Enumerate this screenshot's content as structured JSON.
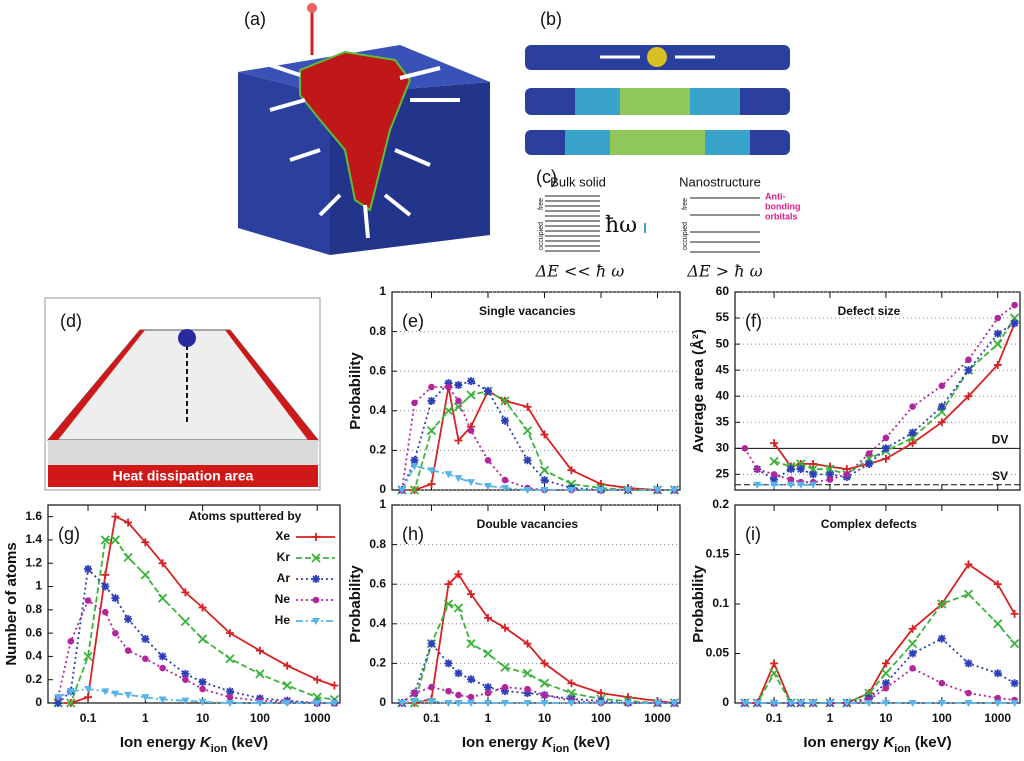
{
  "illustrations": {
    "labels": [
      "(a)",
      "(b)",
      "(c)",
      "(d)"
    ],
    "bulk_solid": "Bulk solid",
    "nanostructure": "Nanostructure",
    "antibonding": [
      "Anti-",
      "bonding",
      "orbitals"
    ],
    "free": "free",
    "occupied": "occupied",
    "hbar_omega": "ħω",
    "bulk_relation": "ΔE << ħ ω",
    "nano_relation": "ΔE > ħ ω",
    "heat_area": "Heat dissipation area"
  },
  "chart_data": [
    {
      "type": "line",
      "label": "(e)",
      "title": "Single vacancies",
      "ylabel": "Probability",
      "xscale": "log",
      "grid": true,
      "xticklabels": false,
      "x": [
        0.03,
        0.05,
        0.1,
        0.2,
        0.3,
        0.5,
        1,
        2,
        5,
        10,
        30,
        100,
        300,
        1000,
        2000
      ],
      "xlim": [
        0.02,
        2500
      ],
      "xticks": [
        0.1,
        1,
        10,
        100,
        1000
      ],
      "ylim": [
        0,
        1
      ],
      "yticks": [
        0,
        0.2,
        0.4,
        0.6,
        0.8,
        1
      ],
      "series": [
        {
          "color": "#d62222",
          "linestyle": "solid",
          "marker": "plus",
          "values": [
            0,
            0,
            0.03,
            0.52,
            0.25,
            0.32,
            0.5,
            0.45,
            0.42,
            0.28,
            0.1,
            0.03,
            0.01,
            0,
            0
          ]
        },
        {
          "color": "#3cb33c",
          "linestyle": "dashed",
          "marker": "cross",
          "values": [
            0,
            0,
            0.3,
            0.4,
            0.42,
            0.48,
            0.5,
            0.45,
            0.3,
            0.1,
            0.03,
            0.01,
            0,
            0,
            0
          ]
        },
        {
          "color": "#2c3eb8",
          "linestyle": "dotted",
          "marker": "star",
          "values": [
            0,
            0.15,
            0.45,
            0.54,
            0.53,
            0.55,
            0.5,
            0.35,
            0.15,
            0.05,
            0.01,
            0,
            0,
            0,
            0
          ]
        },
        {
          "color": "#b2269c",
          "linestyle": "dotted",
          "marker": "circle",
          "values": [
            0,
            0.44,
            0.52,
            0.52,
            0.45,
            0.3,
            0.15,
            0.05,
            0.01,
            0,
            0,
            0,
            0,
            0,
            0
          ]
        },
        {
          "color": "#56b4e9",
          "linestyle": "dashdot",
          "marker": "triangle",
          "values": [
            0,
            0.12,
            0.1,
            0.08,
            0.06,
            0.04,
            0.02,
            0.01,
            0,
            0,
            0,
            0,
            0,
            0,
            0
          ]
        }
      ]
    },
    {
      "type": "line",
      "label": "(f)",
      "title": "Defect size",
      "ylabel": "Average  area (Å²)",
      "xscale": "log",
      "grid": true,
      "xticklabels": false,
      "x": [
        0.03,
        0.05,
        0.1,
        0.2,
        0.3,
        0.5,
        1,
        2,
        5,
        10,
        30,
        100,
        300,
        1000,
        2000
      ],
      "xlim": [
        0.02,
        2500
      ],
      "xticks": [
        0.1,
        1,
        10,
        100,
        1000
      ],
      "ylim": [
        22,
        60
      ],
      "yticks": [
        25,
        30,
        35,
        40,
        45,
        50,
        55,
        60
      ],
      "reference_lines": [
        {
          "y": 30,
          "label": "DV",
          "linestyle": "solid"
        },
        {
          "y": 23,
          "label": "SV",
          "linestyle": "dashed"
        }
      ],
      "series": [
        {
          "color": "#d62222",
          "linestyle": "solid",
          "marker": "plus",
          "values": [
            null,
            null,
            31,
            26.5,
            27,
            27,
            26.5,
            26,
            27,
            28,
            31,
            35,
            40,
            46,
            54
          ]
        },
        {
          "color": "#3cb33c",
          "linestyle": "dashed",
          "marker": "cross",
          "values": [
            null,
            null,
            27.5,
            26.5,
            27,
            26,
            26,
            25,
            28,
            29.5,
            32,
            37,
            45,
            50,
            55
          ]
        },
        {
          "color": "#2c3eb8",
          "linestyle": "dotted",
          "marker": "star",
          "values": [
            null,
            26,
            24,
            26,
            26,
            25,
            25,
            24.5,
            27,
            30,
            33,
            38,
            45,
            52,
            54
          ]
        },
        {
          "color": "#b2269c",
          "linestyle": "dotted",
          "marker": "circle",
          "values": [
            30,
            26,
            25,
            24,
            23.5,
            23.5,
            24,
            25,
            29,
            32,
            38,
            42,
            47,
            55,
            57.5
          ]
        },
        {
          "color": "#56b4e9",
          "linestyle": "dashdot",
          "marker": "triangle",
          "values": [
            null,
            23,
            23,
            23,
            23,
            23,
            null,
            null,
            null,
            null,
            null,
            null,
            null,
            null,
            null
          ]
        }
      ]
    },
    {
      "type": "line",
      "label": "(g)",
      "ylabel": "Number of atoms",
      "xlabel": [
        "Ion energy ",
        "K",
        "ion",
        " (keV)"
      ],
      "xscale": "log",
      "grid": false,
      "legend": "upper right",
      "legend_title": "Atoms sputtered by",
      "x": [
        0.03,
        0.05,
        0.1,
        0.2,
        0.3,
        0.5,
        1,
        2,
        5,
        10,
        30,
        100,
        300,
        1000,
        2000
      ],
      "xlim": [
        0.02,
        2500
      ],
      "xticks": [
        0.1,
        1,
        10,
        100,
        1000
      ],
      "ylim": [
        0,
        1.7
      ],
      "yticks": [
        0,
        0.2,
        0.4,
        0.6,
        0.8,
        1,
        1.2,
        1.4,
        1.6
      ],
      "series": [
        {
          "name": "Xe",
          "color": "#d62222",
          "linestyle": "solid",
          "marker": "plus",
          "values": [
            0,
            0,
            0.05,
            1.1,
            1.6,
            1.55,
            1.38,
            1.2,
            0.95,
            0.82,
            0.6,
            0.45,
            0.32,
            0.2,
            0.15
          ]
        },
        {
          "name": "Kr",
          "color": "#3cb33c",
          "linestyle": "dashed",
          "marker": "cross",
          "values": [
            0,
            0,
            0.4,
            1.4,
            1.4,
            1.25,
            1.1,
            0.9,
            0.7,
            0.55,
            0.38,
            0.25,
            0.15,
            0.05,
            0.03
          ]
        },
        {
          "name": "Ar",
          "color": "#2c3eb8",
          "linestyle": "dotted",
          "marker": "star",
          "values": [
            0,
            0.1,
            1.15,
            1.0,
            0.9,
            0.72,
            0.55,
            0.4,
            0.25,
            0.18,
            0.1,
            0.04,
            0.02,
            0,
            0
          ]
        },
        {
          "name": "Ne",
          "color": "#b2269c",
          "linestyle": "dotted",
          "marker": "circle",
          "values": [
            0.05,
            0.53,
            0.88,
            0.78,
            0.6,
            0.45,
            0.38,
            0.3,
            0.2,
            0.12,
            0.05,
            0.02,
            0.01,
            0,
            0
          ]
        },
        {
          "name": "He",
          "color": "#56b4e9",
          "linestyle": "dashdot",
          "marker": "triangle",
          "values": [
            0.05,
            0.1,
            0.12,
            0.1,
            0.08,
            0.07,
            0.05,
            0.03,
            0.02,
            0.01,
            0,
            0,
            0,
            0,
            0
          ]
        }
      ]
    },
    {
      "type": "line",
      "label": "(h)",
      "title": "Double vacancies",
      "ylabel": "Probability",
      "xlabel": [
        "Ion energy ",
        "K",
        "ion",
        " (keV)"
      ],
      "xscale": "log",
      "grid": true,
      "x": [
        0.03,
        0.05,
        0.1,
        0.2,
        0.3,
        0.5,
        1,
        2,
        5,
        10,
        30,
        100,
        300,
        1000,
        2000
      ],
      "xlim": [
        0.02,
        2500
      ],
      "xticks": [
        0.1,
        1,
        10,
        100,
        1000
      ],
      "ylim": [
        0,
        1
      ],
      "yticks": [
        0,
        0.2,
        0.4,
        0.6,
        0.8,
        1
      ],
      "series": [
        {
          "color": "#d62222",
          "linestyle": "solid",
          "marker": "plus",
          "values": [
            0,
            0,
            0.02,
            0.6,
            0.65,
            0.55,
            0.43,
            0.38,
            0.3,
            0.2,
            0.1,
            0.05,
            0.03,
            0.01,
            0
          ]
        },
        {
          "color": "#3cb33c",
          "linestyle": "dashed",
          "marker": "cross",
          "values": [
            0,
            0,
            0.3,
            0.5,
            0.48,
            0.3,
            0.25,
            0.18,
            0.15,
            0.1,
            0.05,
            0.02,
            0.01,
            0,
            0
          ]
        },
        {
          "color": "#2c3eb8",
          "linestyle": "dotted",
          "marker": "star",
          "values": [
            0,
            0.05,
            0.3,
            0.2,
            0.15,
            0.12,
            0.08,
            0.06,
            0.05,
            0.04,
            0.02,
            0.01,
            0,
            0,
            0
          ]
        },
        {
          "color": "#b2269c",
          "linestyle": "dotted",
          "marker": "circle",
          "values": [
            0,
            0.05,
            0.08,
            0.06,
            0.04,
            0.03,
            0.05,
            0.08,
            0.07,
            0.04,
            0.01,
            0,
            0,
            0,
            0
          ]
        },
        {
          "color": "#56b4e9",
          "linestyle": "dashdot",
          "marker": "triangle",
          "values": [
            0,
            0.01,
            0.01,
            0,
            0,
            0,
            0,
            0,
            0,
            0,
            0,
            0,
            0,
            0,
            0
          ]
        }
      ]
    },
    {
      "type": "line",
      "label": "(i)",
      "title": "Complex defects",
      "ylabel": "Probability",
      "xlabel": [
        "Ion energy ",
        "K",
        "ion",
        " (keV)"
      ],
      "xscale": "log",
      "grid": false,
      "x": [
        0.03,
        0.05,
        0.1,
        0.2,
        0.3,
        0.5,
        1,
        2,
        5,
        10,
        30,
        100,
        300,
        1000,
        2000
      ],
      "xlim": [
        0.02,
        2500
      ],
      "xticks": [
        0.1,
        1,
        10,
        100,
        1000
      ],
      "ylim": [
        0,
        0.2
      ],
      "yticks": [
        0,
        0.05,
        0.1,
        0.15,
        0.2
      ],
      "series": [
        {
          "color": "#d62222",
          "linestyle": "solid",
          "marker": "plus",
          "values": [
            0,
            0,
            0.04,
            0,
            0,
            0,
            0,
            0,
            0.01,
            0.04,
            0.075,
            0.1,
            0.14,
            0.12,
            0.09
          ]
        },
        {
          "color": "#3cb33c",
          "linestyle": "dashed",
          "marker": "cross",
          "values": [
            0,
            0,
            0.03,
            0,
            0,
            0,
            0,
            0,
            0.01,
            0.03,
            0.06,
            0.1,
            0.11,
            0.08,
            0.06
          ]
        },
        {
          "color": "#2c3eb8",
          "linestyle": "dotted",
          "marker": "star",
          "values": [
            0,
            0,
            0,
            0,
            0,
            0,
            0,
            0,
            0.005,
            0.02,
            0.05,
            0.065,
            0.04,
            0.03,
            0.02
          ]
        },
        {
          "color": "#b2269c",
          "linestyle": "dotted",
          "marker": "circle",
          "values": [
            0,
            0,
            0,
            0,
            0,
            0,
            0,
            0,
            0.003,
            0.015,
            0.035,
            0.02,
            0.01,
            0.005,
            0.003
          ]
        },
        {
          "color": "#56b4e9",
          "linestyle": "dashdot",
          "marker": "triangle",
          "values": [
            0,
            0,
            0,
            0,
            0,
            0,
            0,
            0,
            0,
            0,
            0,
            0,
            0,
            0,
            0
          ]
        }
      ]
    }
  ]
}
